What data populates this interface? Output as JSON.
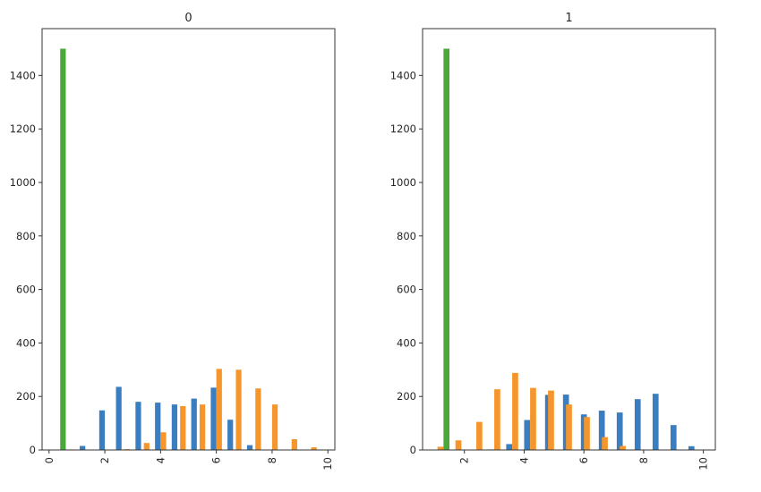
{
  "colors": {
    "blue": "#3a7ebf",
    "orange": "#f5952b",
    "green": "#4aa83b",
    "axis": "#333333",
    "text": "#262626"
  },
  "chart_data": [
    {
      "type": "bar",
      "title": "0",
      "xlabel": "",
      "ylabel": "",
      "xlim": [
        -0.25,
        10.25
      ],
      "ylim": [
        0,
        1575
      ],
      "x_ticks": [
        0,
        2,
        4,
        6,
        8,
        10
      ],
      "x_tick_labels": [
        "0",
        "2",
        "4",
        "6",
        "8",
        "10"
      ],
      "y_ticks": [
        0,
        200,
        400,
        600,
        800,
        1000,
        1200,
        1400
      ],
      "y_tick_labels": [
        "0",
        "200",
        "400",
        "600",
        "800",
        "1000",
        "1200",
        "1400"
      ],
      "bar_width": 0.2,
      "grid": false,
      "legend": "none",
      "series": [
        {
          "color_key": "blue",
          "x": [
            0.5,
            1.2,
            1.9,
            2.5,
            3.2,
            3.9,
            4.5,
            5.2,
            5.9,
            6.5,
            7.2,
            7.9,
            8.5,
            9.2,
            9.9
          ],
          "values": [
            0,
            15,
            148,
            236,
            180,
            177,
            170,
            192,
            233,
            113,
            18,
            0,
            0,
            0,
            0
          ]
        },
        {
          "color_key": "orange",
          "x": [
            0.8,
            1.5,
            2.1,
            2.8,
            3.5,
            4.1,
            4.8,
            5.5,
            6.1,
            6.8,
            7.5,
            8.1,
            8.8,
            9.5
          ],
          "values": [
            2,
            0,
            0,
            3,
            26,
            66,
            164,
            170,
            303,
            300,
            230,
            170,
            40,
            10
          ]
        },
        {
          "color_key": "green",
          "x": [
            0.5
          ],
          "values": [
            1500
          ]
        }
      ]
    },
    {
      "type": "bar",
      "title": "1",
      "xlabel": "",
      "ylabel": "",
      "xlim": [
        0.6,
        10.4
      ],
      "ylim": [
        0,
        1575
      ],
      "x_ticks": [
        2,
        4,
        6,
        8,
        10
      ],
      "x_tick_labels": [
        "2",
        "4",
        "6",
        "8",
        "10"
      ],
      "y_ticks": [
        0,
        200,
        400,
        600,
        800,
        1000,
        1200,
        1400
      ],
      "y_tick_labels": [
        "0",
        "200",
        "400",
        "600",
        "800",
        "1000",
        "1200",
        "1400"
      ],
      "bar_width": 0.2,
      "grid": false,
      "legend": "none",
      "series": [
        {
          "color_key": "blue",
          "x": [
            2.9,
            3.5,
            4.1,
            4.8,
            5.4,
            6.0,
            6.6,
            7.2,
            7.8,
            8.4,
            9.0,
            9.6
          ],
          "values": [
            2,
            22,
            112,
            206,
            207,
            133,
            147,
            140,
            190,
            210,
            93,
            14
          ]
        },
        {
          "color_key": "orange",
          "x": [
            1.2,
            1.8,
            2.5,
            3.1,
            3.7,
            4.3,
            4.9,
            5.5,
            6.1,
            6.7,
            7.3
          ],
          "values": [
            12,
            36,
            105,
            227,
            288,
            232,
            222,
            170,
            123,
            48,
            15
          ]
        },
        {
          "color_key": "green",
          "x": [
            1.4
          ],
          "values": [
            1500
          ]
        }
      ]
    }
  ]
}
